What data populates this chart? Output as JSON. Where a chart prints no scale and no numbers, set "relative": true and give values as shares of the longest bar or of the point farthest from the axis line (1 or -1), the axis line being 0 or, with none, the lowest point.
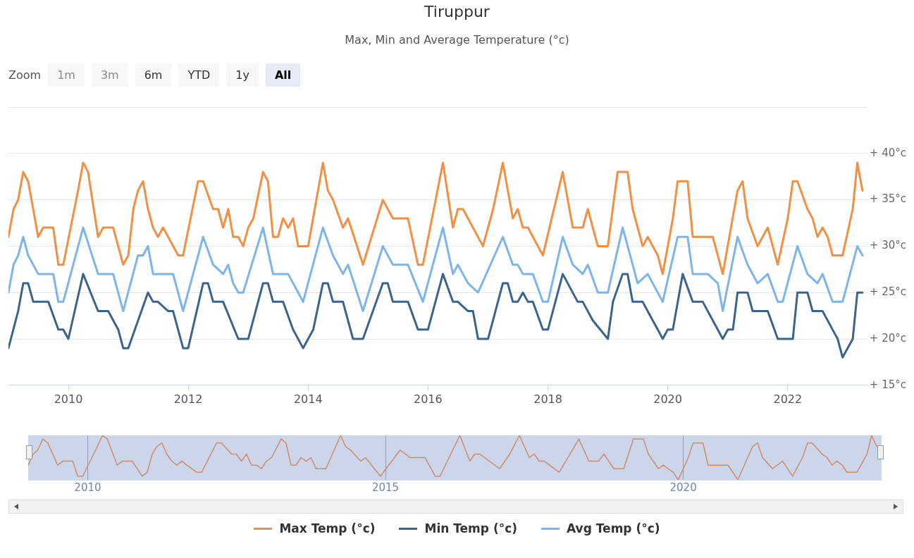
{
  "chart_data": [
    {
      "type": "line",
      "title": "Tiruppur",
      "subtitle": "Max, Min and Average Temperature (°c)",
      "annotations": [
        "Zoom",
        "1m",
        "3m",
        "6m",
        "YTD",
        "1y",
        "All"
      ],
      "xlim": [
        "2009-01",
        "2023-05"
      ],
      "xticks": [
        "2010",
        "2012",
        "2014",
        "2016",
        "2018",
        "2020",
        "2022"
      ],
      "ylim": [
        15,
        45
      ],
      "yticks": [
        {
          "value": 15,
          "label": "+ 15°c"
        },
        {
          "value": 20,
          "label": "+ 20°c"
        },
        {
          "value": 25,
          "label": "+ 25°c"
        },
        {
          "value": 30,
          "label": "+ 30°c"
        },
        {
          "value": 35,
          "label": "+ 35°c"
        },
        {
          "value": 40,
          "label": "+ 40°c"
        },
        {
          "value": 45,
          "label": null
        }
      ],
      "grid": "y",
      "legend": "bottom",
      "marker": "none",
      "line_style": "solid",
      "series": [
        {
          "name": "Max Temp (°c)",
          "color": "#f28f43",
          "x": [
            "2009-01",
            "2009-02",
            "2009-03",
            "2009-04",
            "2009-05",
            "2009-07",
            "2009-08",
            "2009-10",
            "2009-11",
            "2009-12",
            "2010-03",
            "2010-04",
            "2010-05",
            "2010-07",
            "2010-08",
            "2010-10",
            "2010-12",
            "2011-01",
            "2011-02",
            "2011-03",
            "2011-04",
            "2011-05",
            "2011-06",
            "2011-07",
            "2011-08",
            "2011-09",
            "2011-11",
            "2011-12",
            "2012-03",
            "2012-04",
            "2012-06",
            "2012-07",
            "2012-08",
            "2012-09",
            "2012-10",
            "2012-11",
            "2012-12",
            "2013-01",
            "2013-02",
            "2013-04",
            "2013-05",
            "2013-06",
            "2013-07",
            "2013-08",
            "2013-09",
            "2013-10",
            "2013-11",
            "2014-01",
            "2014-04",
            "2014-05",
            "2014-06",
            "2014-08",
            "2014-09",
            "2014-12",
            "2015-04",
            "2015-06",
            "2015-09",
            "2015-11",
            "2015-12",
            "2016-04",
            "2016-06",
            "2016-07",
            "2016-08",
            "2016-12",
            "2017-02",
            "2017-04",
            "2017-06",
            "2017-07",
            "2017-08",
            "2017-09",
            "2017-12",
            "2018-04",
            "2018-06",
            "2018-08",
            "2018-09",
            "2018-10",
            "2018-11",
            "2019-01",
            "2019-03",
            "2019-05",
            "2019-06",
            "2019-08",
            "2019-09",
            "2019-10",
            "2019-11",
            "2019-12",
            "2020-02",
            "2020-03",
            "2020-05",
            "2020-06",
            "2020-10",
            "2020-12",
            "2021-03",
            "2021-04",
            "2021-05",
            "2021-07",
            "2021-09",
            "2021-11",
            "2022-01",
            "2022-02",
            "2022-03",
            "2022-05",
            "2022-06",
            "2022-07",
            "2022-08",
            "2022-09",
            "2022-10",
            "2022-12",
            "2023-02",
            "2023-03",
            "2023-04"
          ],
          "values": [
            31,
            34,
            35,
            38,
            37,
            31,
            32,
            32,
            28,
            28,
            36,
            39,
            38,
            31,
            32,
            32,
            28,
            29,
            34,
            36,
            37,
            34,
            32,
            31,
            32,
            31,
            29,
            29,
            37,
            37,
            34,
            34,
            32,
            34,
            31,
            31,
            30,
            32,
            33,
            38,
            37,
            31,
            31,
            33,
            32,
            33,
            30,
            30,
            39,
            36,
            35,
            32,
            33,
            28,
            35,
            33,
            33,
            28,
            28,
            39,
            32,
            34,
            34,
            30,
            34,
            39,
            33,
            34,
            32,
            32,
            29,
            38,
            32,
            32,
            34,
            32,
            30,
            30,
            38,
            38,
            34,
            30,
            31,
            30,
            29,
            27,
            33,
            37,
            37,
            31,
            31,
            27,
            36,
            37,
            33,
            30,
            32,
            28,
            33,
            37,
            37,
            34,
            33,
            31,
            32,
            31,
            29,
            29,
            34,
            39,
            36
          ]
        },
        {
          "name": "Min Temp (°c)",
          "color": "#3b648c",
          "x": [
            "2009-01",
            "2009-03",
            "2009-04",
            "2009-05",
            "2009-06",
            "2009-09",
            "2009-11",
            "2009-12",
            "2010-01",
            "2010-04",
            "2010-07",
            "2010-09",
            "2010-10",
            "2010-11",
            "2010-12",
            "2011-01",
            "2011-05",
            "2011-06",
            "2011-07",
            "2011-09",
            "2011-10",
            "2011-12",
            "2012-01",
            "2012-04",
            "2012-05",
            "2012-06",
            "2012-08",
            "2012-11",
            "2013-01",
            "2013-04",
            "2013-05",
            "2013-06",
            "2013-08",
            "2013-10",
            "2013-11",
            "2013-12",
            "2014-01",
            "2014-02",
            "2014-04",
            "2014-05",
            "2014-06",
            "2014-08",
            "2014-10",
            "2014-12",
            "2015-04",
            "2015-05",
            "2015-06",
            "2015-09",
            "2015-11",
            "2016-01",
            "2016-04",
            "2016-06",
            "2016-07",
            "2016-09",
            "2016-10",
            "2016-11",
            "2017-01",
            "2017-04",
            "2017-05",
            "2017-06",
            "2017-07",
            "2017-08",
            "2017-09",
            "2017-10",
            "2017-12",
            "2018-01",
            "2018-04",
            "2018-07",
            "2018-08",
            "2018-10",
            "2019-01",
            "2019-02",
            "2019-04",
            "2019-05",
            "2019-06",
            "2019-08",
            "2019-10",
            "2019-11",
            "2019-12",
            "2020-01",
            "2020-02",
            "2020-04",
            "2020-06",
            "2020-08",
            "2020-10",
            "2020-12",
            "2021-01",
            "2021-02",
            "2021-03",
            "2021-05",
            "2021-06",
            "2021-09",
            "2021-11",
            "2022-02",
            "2022-03",
            "2022-05",
            "2022-06",
            "2022-08",
            "2022-10",
            "2022-11",
            "2022-12",
            "2023-02",
            "2023-03",
            "2023-04"
          ],
          "values": [
            19,
            23,
            26,
            26,
            24,
            24,
            21,
            21,
            20,
            27,
            23,
            23,
            22,
            21,
            19,
            19,
            25,
            24,
            24,
            23,
            23,
            19,
            19,
            26,
            26,
            24,
            24,
            20,
            20,
            26,
            26,
            24,
            24,
            21,
            20,
            19,
            20,
            21,
            26,
            26,
            24,
            24,
            20,
            20,
            26,
            26,
            24,
            24,
            21,
            21,
            27,
            24,
            24,
            23,
            23,
            20,
            20,
            26,
            26,
            24,
            24,
            25,
            24,
            24,
            21,
            21,
            27,
            24,
            24,
            22,
            20,
            24,
            27,
            27,
            24,
            24,
            22,
            21,
            20,
            21,
            21,
            27,
            24,
            24,
            22,
            20,
            21,
            21,
            25,
            25,
            23,
            23,
            20,
            20,
            25,
            25,
            23,
            23,
            21,
            20,
            18,
            20,
            25,
            25
          ]
        },
        {
          "name": "Avg Temp (°c)",
          "color": "#7cb5ec",
          "x": [
            "2009-01",
            "2009-02",
            "2009-03",
            "2009-04",
            "2009-05",
            "2009-07",
            "2009-10",
            "2009-11",
            "2009-12",
            "2010-04",
            "2010-07",
            "2010-10",
            "2010-12",
            "2011-03",
            "2011-04",
            "2011-05",
            "2011-06",
            "2011-10",
            "2011-12",
            "2012-04",
            "2012-06",
            "2012-08",
            "2012-09",
            "2012-10",
            "2012-11",
            "2012-12",
            "2013-04",
            "2013-06",
            "2013-09",
            "2013-11",
            "2013-12",
            "2014-04",
            "2014-06",
            "2014-08",
            "2014-09",
            "2014-12",
            "2015-04",
            "2015-06",
            "2015-09",
            "2015-12",
            "2016-04",
            "2016-06",
            "2016-07",
            "2016-08",
            "2016-09",
            "2016-11",
            "2017-04",
            "2017-06",
            "2017-07",
            "2017-08",
            "2017-10",
            "2017-12",
            "2018-01",
            "2018-04",
            "2018-06",
            "2018-08",
            "2018-09",
            "2018-11",
            "2019-01",
            "2019-04",
            "2019-06",
            "2019-07",
            "2019-09",
            "2019-12",
            "2020-03",
            "2020-05",
            "2020-06",
            "2020-09",
            "2020-11",
            "2020-12",
            "2021-03",
            "2021-05",
            "2021-07",
            "2021-09",
            "2021-11",
            "2021-12",
            "2022-03",
            "2022-05",
            "2022-07",
            "2022-08",
            "2022-10",
            "2022-12",
            "2023-03",
            "2023-04"
          ],
          "values": [
            25,
            28,
            29,
            31,
            29,
            27,
            27,
            24,
            24,
            32,
            27,
            27,
            23,
            29,
            29,
            30,
            27,
            27,
            23,
            31,
            28,
            27,
            28,
            26,
            25,
            25,
            32,
            27,
            27,
            25,
            24,
            32,
            29,
            27,
            28,
            23,
            30,
            28,
            28,
            24,
            32,
            27,
            28,
            27,
            26,
            25,
            31,
            28,
            28,
            27,
            27,
            24,
            24,
            31,
            28,
            27,
            28,
            25,
            25,
            32,
            28,
            26,
            27,
            24,
            31,
            31,
            27,
            27,
            26,
            23,
            31,
            28,
            26,
            27,
            24,
            24,
            30,
            27,
            26,
            27,
            24,
            24,
            30,
            29
          ]
        }
      ]
    },
    {
      "type": "line",
      "relative": true,
      "tick_labels": "x",
      "grid": "x",
      "marker": "none",
      "xlim": [
        "2009-01",
        "2023-05"
      ],
      "xticks": [
        "2010",
        "2015",
        "2020"
      ],
      "bands": [
        {
          "axis": "x",
          "from": "2009-01",
          "to": "2023-05",
          "color": "#ccd6eb"
        }
      ],
      "series": [
        {
          "color": "#d08b6a",
          "x": [
            "2009-01",
            "2009-02",
            "2009-03",
            "2009-04",
            "2009-05",
            "2009-07",
            "2009-08",
            "2009-10",
            "2009-11",
            "2009-12",
            "2010-03",
            "2010-04",
            "2010-05",
            "2010-07",
            "2010-08",
            "2010-10",
            "2010-12",
            "2011-01",
            "2011-02",
            "2011-03",
            "2011-04",
            "2011-05",
            "2011-06",
            "2011-07",
            "2011-08",
            "2011-09",
            "2011-11",
            "2011-12",
            "2012-03",
            "2012-04",
            "2012-06",
            "2012-07",
            "2012-08",
            "2012-09",
            "2012-10",
            "2012-11",
            "2012-12",
            "2013-01",
            "2013-02",
            "2013-04",
            "2013-05",
            "2013-06",
            "2013-07",
            "2013-08",
            "2013-09",
            "2013-10",
            "2013-11",
            "2014-01",
            "2014-04",
            "2014-05",
            "2014-06",
            "2014-08",
            "2014-09",
            "2014-12",
            "2015-04",
            "2015-06",
            "2015-09",
            "2015-11",
            "2015-12",
            "2016-04",
            "2016-06",
            "2016-07",
            "2016-08",
            "2016-12",
            "2017-02",
            "2017-04",
            "2017-06",
            "2017-07",
            "2017-08",
            "2017-09",
            "2017-12",
            "2018-04",
            "2018-06",
            "2018-08",
            "2018-09",
            "2018-10",
            "2018-11",
            "2019-01",
            "2019-03",
            "2019-05",
            "2019-06",
            "2019-08",
            "2019-09",
            "2019-10",
            "2019-11",
            "2019-12",
            "2020-02",
            "2020-03",
            "2020-05",
            "2020-06",
            "2020-10",
            "2020-12",
            "2021-03",
            "2021-04",
            "2021-05",
            "2021-07",
            "2021-09",
            "2021-11",
            "2022-01",
            "2022-02",
            "2022-03",
            "2022-05",
            "2022-06",
            "2022-07",
            "2022-08",
            "2022-09",
            "2022-10",
            "2022-12",
            "2023-02",
            "2023-03",
            "2023-04"
          ],
          "values": [
            0.33,
            0.58,
            0.67,
            0.92,
            0.83,
            0.33,
            0.42,
            0.42,
            0.08,
            0.08,
            0.75,
            1,
            0.92,
            0.33,
            0.42,
            0.42,
            0.08,
            0.17,
            0.58,
            0.75,
            0.83,
            0.58,
            0.42,
            0.33,
            0.42,
            0.33,
            0.17,
            0.17,
            0.83,
            0.83,
            0.58,
            0.58,
            0.42,
            0.58,
            0.33,
            0.33,
            0.25,
            0.42,
            0.5,
            0.92,
            0.83,
            0.33,
            0.33,
            0.5,
            0.42,
            0.5,
            0.25,
            0.25,
            1,
            0.75,
            0.67,
            0.42,
            0.5,
            0.08,
            0.67,
            0.5,
            0.5,
            0.08,
            0.08,
            1,
            0.42,
            0.58,
            0.58,
            0.25,
            0.58,
            1,
            0.5,
            0.58,
            0.42,
            0.42,
            0.17,
            0.92,
            0.42,
            0.42,
            0.58,
            0.42,
            0.25,
            0.25,
            0.92,
            0.92,
            0.58,
            0.25,
            0.33,
            0.25,
            0.17,
            0,
            0.5,
            0.83,
            0.83,
            0.33,
            0.33,
            0,
            0.75,
            0.83,
            0.5,
            0.25,
            0.42,
            0.08,
            0.5,
            0.83,
            0.83,
            0.58,
            0.5,
            0.33,
            0.42,
            0.33,
            0.17,
            0.17,
            0.58,
            1,
            0.75
          ]
        }
      ]
    }
  ]
}
